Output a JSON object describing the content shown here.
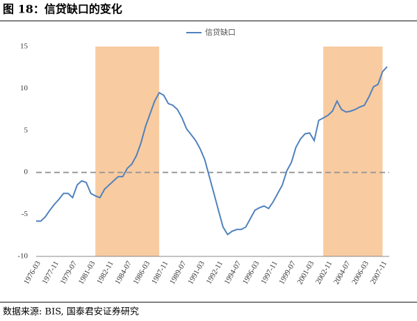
{
  "chart_data": {
    "type": "line",
    "title": "图 18：信贷缺口的变化",
    "source": "数据来源: BIS, 国泰君安证券研究",
    "categories": [
      "1976-03",
      null,
      null,
      null,
      "1977-11",
      null,
      null,
      null,
      "1979-07",
      null,
      null,
      null,
      "1981-03",
      null,
      null,
      null,
      "1982-11",
      null,
      null,
      null,
      "1984-07",
      null,
      null,
      null,
      "1986-03",
      null,
      null,
      null,
      "1987-11",
      null,
      null,
      null,
      "1989-07",
      null,
      null,
      null,
      "1991-03",
      null,
      null,
      null,
      "1992-11",
      null,
      null,
      null,
      "1994-07",
      null,
      null,
      null,
      "1996-03",
      null,
      null,
      null,
      "1997-11",
      null,
      null,
      null,
      "1999-07",
      null,
      null,
      null,
      "2001-03",
      null,
      null,
      null,
      "2002-11",
      null,
      null,
      null,
      "2004-07",
      null,
      null,
      null,
      "2006-03",
      null,
      null,
      null,
      "2007-11",
      null
    ],
    "series": [
      {
        "name": "信贷缺口",
        "color": "#4f81bd",
        "values": [
          -5.8,
          -5.8,
          -5.3,
          -4.5,
          -3.8,
          -3.2,
          -2.5,
          -2.5,
          -3.0,
          -1.5,
          -1.0,
          -1.2,
          -2.5,
          -2.8,
          -3.0,
          -2.0,
          -1.5,
          -1.0,
          -0.5,
          -0.5,
          0.5,
          1.0,
          2.0,
          3.5,
          5.5,
          7.0,
          8.5,
          9.5,
          9.2,
          8.2,
          8.0,
          7.5,
          6.5,
          5.2,
          4.5,
          3.8,
          2.8,
          1.5,
          -0.5,
          -2.5,
          -4.5,
          -6.5,
          -7.4,
          -7.0,
          -6.8,
          -6.8,
          -6.5,
          -5.5,
          -4.5,
          -4.2,
          -4.0,
          -4.3,
          -3.5,
          -2.5,
          -1.5,
          0.2,
          1.2,
          3.0,
          4.0,
          4.6,
          4.7,
          3.8,
          6.2,
          6.5,
          6.8,
          7.3,
          8.5,
          7.5,
          7.2,
          7.3,
          7.5,
          7.8,
          8.0,
          9.0,
          10.2,
          10.5,
          12.0,
          12.6
        ]
      }
    ],
    "ylim": [
      -10,
      15
    ],
    "yticks": [
      -10,
      -5,
      0,
      5,
      10,
      15
    ],
    "shaded_ranges": [
      [
        13,
        27
      ],
      [
        63,
        76
      ]
    ],
    "shade_color": "#f8cba0",
    "zero_line": true,
    "legend": "top"
  }
}
